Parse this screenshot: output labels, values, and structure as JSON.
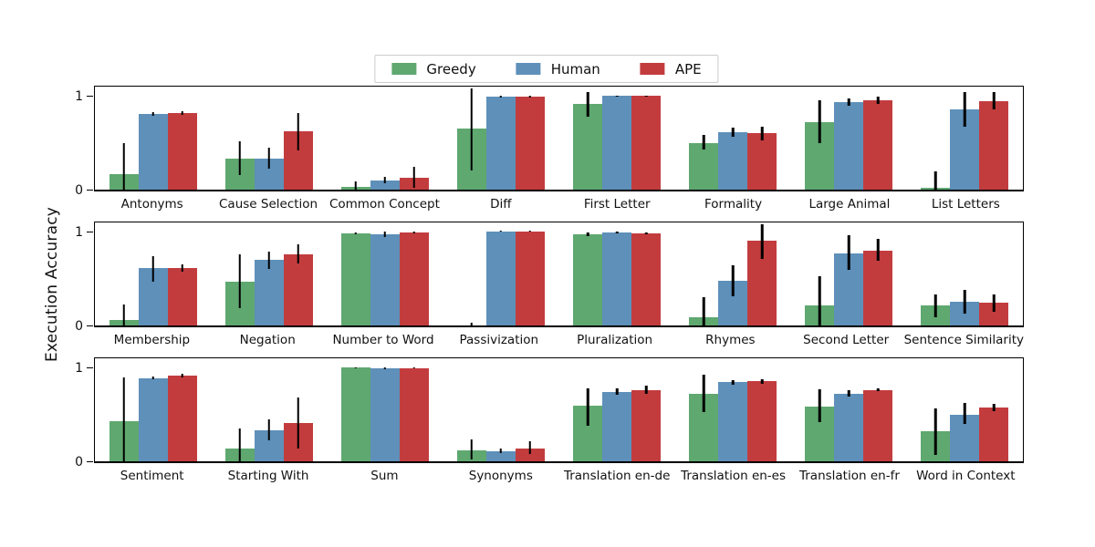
{
  "legend": {
    "entries": [
      {
        "label": "Greedy",
        "color": "#5fa870"
      },
      {
        "label": "Human",
        "color": "#5e90ba"
      },
      {
        "label": "APE",
        "color": "#c23c3e"
      }
    ]
  },
  "chart_data": {
    "type": "bar",
    "title": "",
    "xlabel": "",
    "ylabel": "Execution Accuracy",
    "ylim": [
      0,
      1.1
    ],
    "yticks": [
      1,
      0
    ],
    "ytick_labels": [
      "1",
      "0"
    ],
    "grid": false,
    "legend_position": "top-center",
    "error_bars": true,
    "series_names": [
      "Greedy",
      "Human",
      "APE"
    ],
    "series_colors": {
      "Greedy": "#5fa870",
      "Human": "#5e90ba",
      "APE": "#c23c3e"
    },
    "panels": [
      {
        "categories": [
          "Antonyms",
          "Cause Selection",
          "Common Concept",
          "Diff",
          "First Letter",
          "Formality",
          "Large Animal",
          "List Letters"
        ],
        "series": [
          {
            "name": "Greedy",
            "values": [
              0.17,
              0.33,
              0.03,
              0.65,
              0.91,
              0.5,
              0.72,
              0.02
            ],
            "errors": [
              [
                0.0,
                0.5
              ],
              [
                0.16,
                0.51
              ],
              [
                0.0,
                0.09
              ],
              [
                0.2,
                1.08
              ],
              [
                0.78,
                1.04
              ],
              [
                0.43,
                0.58
              ],
              [
                0.5,
                0.95
              ],
              [
                0.0,
                0.19
              ]
            ]
          },
          {
            "name": "Human",
            "values": [
              0.81,
              0.33,
              0.1,
              0.99,
              1.0,
              0.61,
              0.93,
              0.85
            ],
            "errors": [
              [
                0.79,
                0.83
              ],
              [
                0.22,
                0.45
              ],
              [
                0.07,
                0.14
              ],
              [
                0.98,
                1.0
              ],
              [
                0.99,
                1.0
              ],
              [
                0.56,
                0.66
              ],
              [
                0.89,
                0.97
              ],
              [
                0.67,
                1.04
              ]
            ]
          },
          {
            "name": "APE",
            "values": [
              0.82,
              0.62,
              0.13,
              0.99,
              1.0,
              0.6,
              0.95,
              0.94
            ],
            "errors": [
              [
                0.8,
                0.84
              ],
              [
                0.42,
                0.82
              ],
              [
                0.02,
                0.24
              ],
              [
                0.98,
                1.0
              ],
              [
                0.99,
                1.0
              ],
              [
                0.52,
                0.67
              ],
              [
                0.91,
                0.99
              ],
              [
                0.85,
                1.04
              ]
            ]
          }
        ]
      },
      {
        "categories": [
          "Membership",
          "Negation",
          "Number to Word",
          "Passivization",
          "Pluralization",
          "Rhymes",
          "Second Letter",
          "Sentence Similarity"
        ],
        "series": [
          {
            "name": "Greedy",
            "values": [
              0.06,
              0.47,
              0.98,
              0.0,
              0.97,
              0.09,
              0.21,
              0.21
            ],
            "errors": [
              [
                0.0,
                0.22
              ],
              [
                0.18,
                0.76
              ],
              [
                0.97,
                0.99
              ],
              [
                0.0,
                0.03
              ],
              [
                0.95,
                0.99
              ],
              [
                0.0,
                0.3
              ],
              [
                0.0,
                0.52
              ],
              [
                0.09,
                0.33
              ]
            ]
          },
          {
            "name": "Human",
            "values": [
              0.61,
              0.7,
              0.97,
              1.0,
              0.99,
              0.48,
              0.77,
              0.25
            ],
            "errors": [
              [
                0.47,
                0.74
              ],
              [
                0.6,
                0.79
              ],
              [
                0.94,
                1.0
              ],
              [
                1.0,
                1.0
              ],
              [
                0.98,
                1.0
              ],
              [
                0.31,
                0.64
              ],
              [
                0.59,
                0.96
              ],
              [
                0.13,
                0.38
              ]
            ]
          },
          {
            "name": "APE",
            "values": [
              0.61,
              0.76,
              0.99,
              1.0,
              0.98,
              0.9,
              0.8,
              0.24
            ],
            "errors": [
              [
                0.57,
                0.65
              ],
              [
                0.66,
                0.86
              ],
              [
                0.98,
                1.0
              ],
              [
                1.0,
                1.0
              ],
              [
                0.97,
                0.99
              ],
              [
                0.71,
                1.08
              ],
              [
                0.69,
                0.92
              ],
              [
                0.15,
                0.33
              ]
            ]
          }
        ]
      },
      {
        "categories": [
          "Sentiment",
          "Starting With",
          "Sum",
          "Synonyms",
          "Translation en-de",
          "Translation en-es",
          "Translation en-fr",
          "Word in Context"
        ],
        "series": [
          {
            "name": "Greedy",
            "values": [
              0.43,
              0.14,
              1.0,
              0.12,
              0.59,
              0.72,
              0.58,
              0.32
            ],
            "errors": [
              [
                0.0,
                0.89
              ],
              [
                0.0,
                0.35
              ],
              [
                0.99,
                1.0
              ],
              [
                0.02,
                0.23
              ],
              [
                0.38,
                0.78
              ],
              [
                0.52,
                0.92
              ],
              [
                0.42,
                0.77
              ],
              [
                0.07,
                0.56
              ]
            ]
          },
          {
            "name": "Human",
            "values": [
              0.88,
              0.33,
              0.99,
              0.11,
              0.74,
              0.84,
              0.72,
              0.5
            ],
            "errors": [
              [
                0.87,
                0.9
              ],
              [
                0.22,
                0.45
              ],
              [
                0.98,
                1.0
              ],
              [
                0.09,
                0.14
              ],
              [
                0.71,
                0.78
              ],
              [
                0.82,
                0.86
              ],
              [
                0.69,
                0.76
              ],
              [
                0.4,
                0.62
              ]
            ]
          },
          {
            "name": "APE",
            "values": [
              0.91,
              0.41,
              0.99,
              0.14,
              0.76,
              0.85,
              0.76,
              0.57
            ],
            "errors": [
              [
                0.89,
                0.93
              ],
              [
                0.14,
                0.68
              ],
              [
                0.99,
                1.0
              ],
              [
                0.08,
                0.21
              ],
              [
                0.72,
                0.81
              ],
              [
                0.83,
                0.87
              ],
              [
                0.75,
                0.78
              ],
              [
                0.53,
                0.61
              ]
            ]
          }
        ]
      }
    ]
  }
}
